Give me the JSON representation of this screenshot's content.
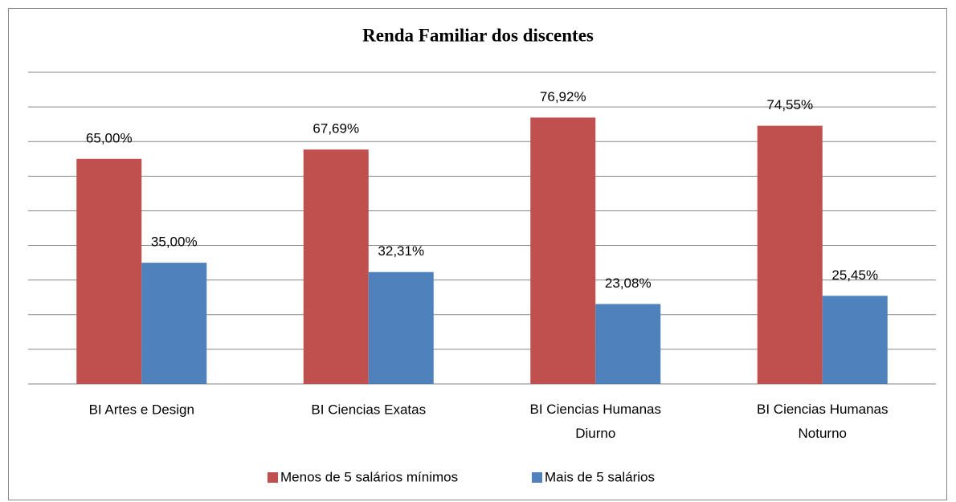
{
  "chart_data": {
    "type": "bar",
    "title": "Renda Familiar dos discentes",
    "categories": [
      "BI Artes e Design",
      "BI Ciencias Exatas",
      "BI Ciencias Humanas\nDiurno",
      "BI Ciencias Humanas\nNoturno"
    ],
    "series": [
      {
        "name": "Menos de 5 salários mínimos",
        "color": "#c0504d",
        "values": [
          65.0,
          67.69,
          76.92,
          74.55
        ],
        "value_labels": [
          "65,00%",
          "67,69%",
          "76,92%",
          "74,55%"
        ]
      },
      {
        "name": "Mais de 5 salários",
        "color": "#4f81bd",
        "values": [
          35.0,
          32.31,
          23.08,
          25.45
        ],
        "value_labels": [
          "35,00%",
          "32,31%",
          "23,08%",
          "25,45%"
        ]
      }
    ],
    "ylim": [
      0,
      90
    ],
    "yticks": [
      0,
      10,
      20,
      30,
      40,
      50,
      60,
      70,
      80,
      90
    ],
    "grid": true,
    "legend": "bottom"
  }
}
